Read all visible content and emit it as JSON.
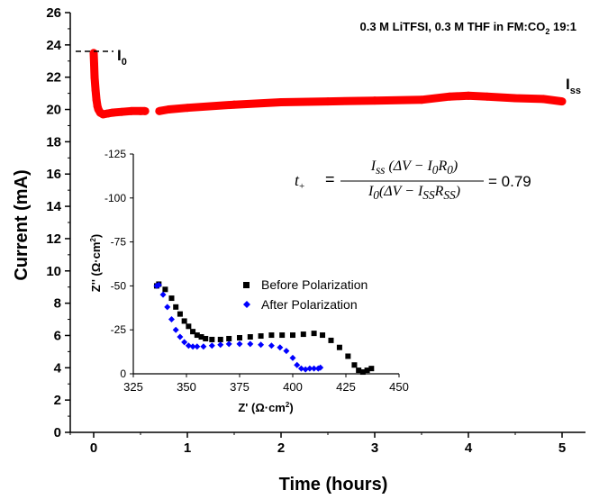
{
  "chart_data": [
    {
      "type": "scatter",
      "annotation": "0.3 M LiTFSI, 0.3 M THF in FM:CO",
      "annotation_subscript": "2",
      "annotation_suffix": " 19:1",
      "xlabel": "Time (hours)",
      "ylabel": "Current (mA)",
      "xlim": [
        -0.25,
        5.25
      ],
      "ylim": [
        0,
        26
      ],
      "x_ticks": [
        0,
        1,
        2,
        3,
        4,
        5
      ],
      "y_ticks": [
        0,
        2,
        4,
        6,
        8,
        10,
        12,
        14,
        16,
        18,
        20,
        22,
        24,
        26
      ],
      "grid": false,
      "labels": {
        "i0": "I",
        "i0_sub": "0",
        "i0_value": 23.6,
        "iss": "I",
        "iss_sub": "ss"
      },
      "series": [
        {
          "color": "#ff0000",
          "x": [
            0.0,
            0.005,
            0.01,
            0.02,
            0.03,
            0.04,
            0.05,
            0.07,
            0.1,
            0.15,
            0.2,
            0.3,
            0.4,
            0.5,
            0.55,
            0.7,
            0.8,
            1.0,
            1.5,
            2.0,
            2.5,
            3.0,
            3.5,
            3.8,
            4.0,
            4.2,
            4.5,
            4.8,
            5.0
          ],
          "y": [
            23.5,
            22.8,
            22.0,
            21.2,
            20.6,
            20.2,
            20.0,
            19.8,
            19.7,
            19.75,
            19.8,
            19.85,
            19.9,
            19.9,
            19.9,
            19.9,
            20.0,
            20.1,
            20.3,
            20.45,
            20.5,
            20.55,
            20.6,
            20.8,
            20.85,
            20.8,
            20.7,
            20.65,
            20.5
          ]
        }
      ]
    },
    {
      "type": "scatter",
      "xlabel": "Z' (Ω·cm",
      "xlabel_sup": "2",
      "xlabel_suffix": ")",
      "ylabel": "Z'' (Ω·cm",
      "ylabel_sup": "2",
      "ylabel_suffix": ")",
      "xlim": [
        325,
        450
      ],
      "ylim": [
        0,
        -125
      ],
      "x_ticks": [
        325,
        350,
        375,
        400,
        425,
        450
      ],
      "y_ticks": [
        0,
        -25,
        -50,
        -75,
        -100,
        -125
      ],
      "grid": false,
      "legend_position": "upper-right",
      "series": [
        {
          "name": "Before Polarization",
          "color": "#000000",
          "marker": "square",
          "x": [
            336,
            337,
            340,
            343,
            345,
            347,
            349,
            351,
            353,
            355,
            357,
            359,
            362,
            366,
            370,
            375,
            380,
            385,
            390,
            395,
            400,
            405,
            410,
            414,
            418,
            422,
            426,
            429,
            431,
            433,
            435,
            437
          ],
          "y": [
            -50,
            -51,
            -48,
            -43,
            -38,
            -34,
            -30,
            -27,
            -24,
            -22,
            -21,
            -20,
            -19.5,
            -19.5,
            -20,
            -20.5,
            -21,
            -21.5,
            -22,
            -22,
            -22,
            -22.5,
            -23,
            -22,
            -19,
            -15,
            -10,
            -5,
            -2,
            -1,
            -2,
            -3
          ]
        },
        {
          "name": "After Polarization",
          "color": "#0000ff",
          "marker": "diamond",
          "x": [
            336,
            337,
            339,
            341,
            343,
            345,
            347,
            349,
            351,
            353,
            355,
            358,
            362,
            366,
            370,
            375,
            380,
            385,
            390,
            394,
            397,
            400,
            402,
            404,
            406,
            408,
            410,
            412,
            413
          ],
          "y": [
            -50,
            -50.5,
            -45,
            -38,
            -31,
            -25,
            -21,
            -18,
            -16,
            -15.5,
            -15.5,
            -15.5,
            -16,
            -16.5,
            -17,
            -17,
            -17,
            -16.5,
            -16,
            -15,
            -13,
            -9,
            -5,
            -3,
            -2.5,
            -3,
            -3,
            -3,
            -3.5
          ]
        }
      ]
    }
  ],
  "formula": {
    "lhs": "t",
    "lhs_sub": "+",
    "eq": "=",
    "num_html": "I<sub>ss</sub> (ΔV − I<sub>0</sub>R<sub>0</sub>)",
    "den_html": "I<sub>0</sub>(ΔV − I<sub>SS</sub>R<sub>SS</sub>)",
    "result": "= 0.79"
  }
}
